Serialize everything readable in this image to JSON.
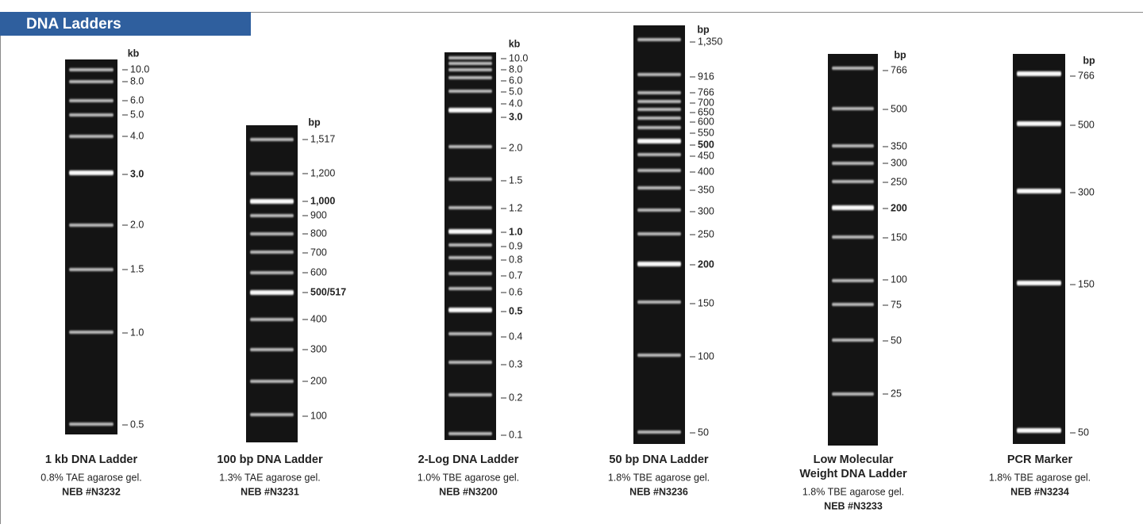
{
  "header": {
    "title": "DNA Ladders"
  },
  "ladders": [
    {
      "unit": "kb",
      "labels": [
        "10.0",
        "8.0",
        "6.0",
        "5.0",
        "4.0",
        "3.0",
        "2.0",
        "1.5",
        "1.0",
        "0.5"
      ],
      "name": [
        "1 kb DNA Ladder"
      ],
      "gel": "0.8% TAE agarose gel.",
      "catalog": "NEB #N3232"
    },
    {
      "unit": "bp",
      "labels": [
        "1,517",
        "1,200",
        "1,000",
        "900",
        "800",
        "700",
        "600",
        "500/517",
        "400",
        "300",
        "200",
        "100"
      ],
      "name": [
        "100 bp DNA Ladder"
      ],
      "gel": "1.3% TAE agarose gel.",
      "catalog": "NEB #N3231"
    },
    {
      "unit": "kb",
      "labels": [
        "10.0",
        "8.0",
        "6.0",
        "5.0",
        "4.0",
        "3.0",
        "2.0",
        "1.5",
        "1.2",
        "1.0",
        "0.9",
        "0.8",
        "0.7",
        "0.6",
        "0.5",
        "0.4",
        "0.3",
        "0.2",
        "0.1"
      ],
      "name": [
        "2-Log DNA Ladder"
      ],
      "gel": "1.0% TBE agarose gel.",
      "catalog": "NEB #N3200"
    },
    {
      "unit": "bp",
      "labels": [
        "1,350",
        "916",
        "766",
        "700",
        "650",
        "600",
        "550",
        "500",
        "450",
        "400",
        "350",
        "300",
        "250",
        "200",
        "150",
        "100",
        "50"
      ],
      "name": [
        "50 bp DNA Ladder"
      ],
      "gel": "1.8% TBE agarose gel.",
      "catalog": "NEB #N3236"
    },
    {
      "unit": "bp",
      "labels": [
        "766",
        "500",
        "350",
        "300",
        "250",
        "200",
        "150",
        "100",
        "75",
        "50",
        "25"
      ],
      "name": [
        "Low Molecular",
        "Weight DNA Ladder"
      ],
      "gel": "1.8% TBE agarose gel.",
      "catalog": "NEB #N3233"
    },
    {
      "unit": "bp",
      "labels": [
        "766",
        "500",
        "300",
        "150",
        "50"
      ],
      "name": [
        "PCR Marker"
      ],
      "gel": "1.8% TBE agarose gel.",
      "catalog": "NEB #N3234"
    }
  ]
}
